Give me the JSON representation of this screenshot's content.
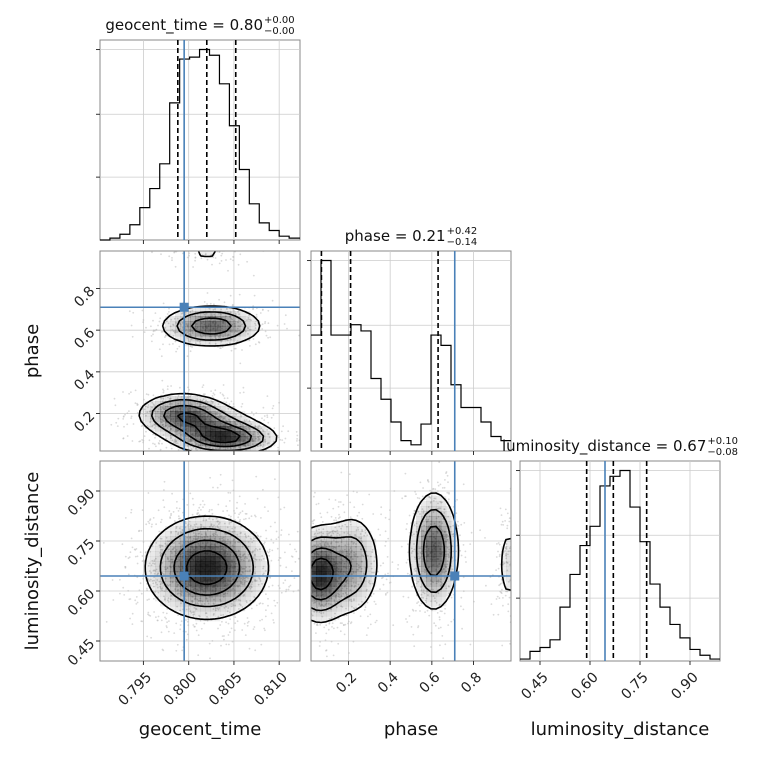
{
  "chart_data": {
    "type": "corner",
    "parameters": [
      "geocent_time",
      "phase",
      "luminosity_distance"
    ],
    "axis_labels": {
      "geocent_time": "geocent_time",
      "phase": "phase",
      "luminosity_distance": "luminosity_distance"
    },
    "titles": [
      {
        "param": "geocent_time",
        "text": "geocent_time = 0.80",
        "sup": "+0.00",
        "sub": "−0.00"
      },
      {
        "param": "phase",
        "text": "phase = 0.21",
        "sup": "+0.42",
        "sub": "−0.14"
      },
      {
        "param": "luminosity_distance",
        "text": "luminosity_distance = 0.67",
        "sup": "+0.10",
        "sub": "−0.08"
      }
    ],
    "ranges": {
      "geocent_time": [
        0.7902,
        0.8123
      ],
      "phase": [
        0.02,
        0.98
      ],
      "luminosity_distance": [
        0.39,
        0.99
      ]
    },
    "ticks": {
      "geocent_time": [
        {
          "v": 0.795,
          "label": "0.795"
        },
        {
          "v": 0.8,
          "label": "0.800"
        },
        {
          "v": 0.805,
          "label": "0.805"
        },
        {
          "v": 0.81,
          "label": "0.810"
        }
      ],
      "phase": [
        {
          "v": 0.2,
          "label": "0.2"
        },
        {
          "v": 0.4,
          "label": "0.4"
        },
        {
          "v": 0.6,
          "label": "0.6"
        },
        {
          "v": 0.8,
          "label": "0.8"
        }
      ],
      "luminosity_distance": [
        {
          "v": 0.45,
          "label": "0.45"
        },
        {
          "v": 0.6,
          "label": "0.60"
        },
        {
          "v": 0.75,
          "label": "0.75"
        },
        {
          "v": 0.9,
          "label": "0.90"
        }
      ]
    },
    "truths": {
      "geocent_time": 0.7995,
      "phase": 0.71,
      "luminosity_distance": 0.645
    },
    "quantiles": {
      "geocent_time": [
        0.7988,
        0.802,
        0.8052
      ],
      "phase": [
        0.07,
        0.21,
        0.63
      ],
      "luminosity_distance": [
        0.59,
        0.67,
        0.77
      ]
    },
    "histograms": {
      "geocent_time": {
        "edges": [
          0.7902,
          0.7913,
          0.7924,
          0.7935,
          0.7946,
          0.7957,
          0.7968,
          0.7979,
          0.799,
          0.8001,
          0.8012,
          0.8023,
          0.8034,
          0.8045,
          0.8056,
          0.8067,
          0.8078,
          0.8089,
          0.81,
          0.8111,
          0.8123
        ],
        "counts": [
          0,
          1,
          3,
          8,
          17,
          27,
          40,
          72,
          95,
          96,
          100,
          97,
          82,
          60,
          37,
          19,
          9,
          5,
          2,
          1
        ]
      },
      "phase": {
        "edges": [
          0.02,
          0.068,
          0.116,
          0.164,
          0.212,
          0.26,
          0.308,
          0.356,
          0.404,
          0.452,
          0.5,
          0.548,
          0.596,
          0.644,
          0.692,
          0.74,
          0.788,
          0.836,
          0.884,
          0.932,
          0.98
        ],
        "counts": [
          56,
          92,
          56,
          56,
          61,
          58,
          35,
          25,
          14,
          5,
          3,
          13,
          56,
          51,
          32,
          21,
          21,
          14,
          7,
          5
        ]
      },
      "luminosity_distance": {
        "edges": [
          0.39,
          0.42,
          0.45,
          0.48,
          0.51,
          0.54,
          0.57,
          0.6,
          0.63,
          0.66,
          0.69,
          0.72,
          0.75,
          0.78,
          0.81,
          0.84,
          0.87,
          0.9,
          0.93,
          0.96,
          0.99
        ],
        "counts": [
          1,
          5,
          7,
          11,
          28,
          45,
          60,
          70,
          91,
          96,
          99,
          80,
          62,
          40,
          28,
          19,
          12,
          6,
          3,
          1
        ]
      }
    },
    "blobs": {
      "phase_vs_geocent_time": [
        {
          "cx": 0.8025,
          "cy": 0.62,
          "sx": 0.0028,
          "sy": 0.05,
          "w": 0.42
        },
        {
          "cx": 0.7993,
          "cy": 0.2,
          "sx": 0.0025,
          "sy": 0.05,
          "w": 0.38
        },
        {
          "cx": 0.8042,
          "cy": 0.08,
          "sx": 0.0028,
          "sy": 0.04,
          "w": 0.45
        },
        {
          "cx": 0.802,
          "cy": 0.14,
          "sx": 0.003,
          "sy": 0.05,
          "w": 0.25
        },
        {
          "cx": 0.802,
          "cy": 0.97,
          "sx": 0.002,
          "sy": 0.03,
          "w": 0.08
        }
      ],
      "luminosity_distance_vs_geocent_time": [
        {
          "cx": 0.802,
          "cy": 0.67,
          "sx": 0.0033,
          "sy": 0.075,
          "w": 1.0
        }
      ],
      "luminosity_distance_vs_phase": [
        {
          "cx": 0.06,
          "cy": 0.65,
          "sx": 0.07,
          "sy": 0.07,
          "w": 0.62
        },
        {
          "cx": 0.22,
          "cy": 0.68,
          "sx": 0.07,
          "sy": 0.08,
          "w": 0.3
        },
        {
          "cx": 0.61,
          "cy": 0.72,
          "sx": 0.06,
          "sy": 0.09,
          "w": 0.5
        },
        {
          "cx": 0.97,
          "cy": 0.68,
          "sx": 0.03,
          "sy": 0.07,
          "w": 0.15
        }
      ]
    },
    "colors": {
      "truth": "#4a81b8",
      "histogram": "#000000",
      "scatter": "#bbbbbb",
      "grid": "#cccccc",
      "frame": "#888888"
    }
  }
}
